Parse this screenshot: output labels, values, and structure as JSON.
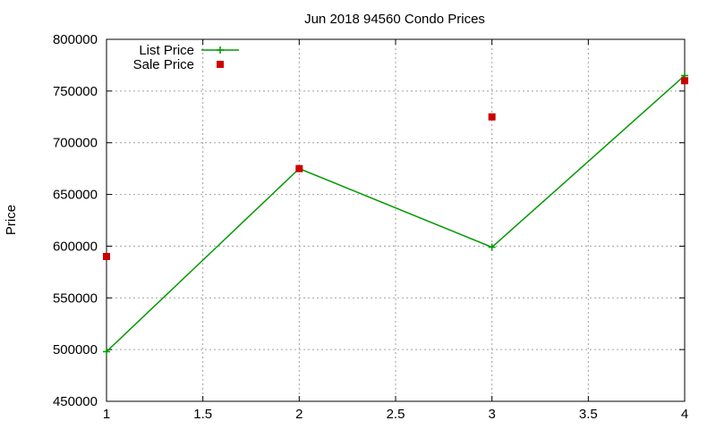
{
  "chart_data": {
    "type": "line",
    "title": "Jun 2018 94560 Condo Prices",
    "xlabel": "",
    "ylabel": "Price",
    "xlim": [
      1,
      4
    ],
    "ylim": [
      450000,
      800000
    ],
    "x_ticks": [
      1,
      1.5,
      2,
      2.5,
      3,
      3.5,
      4
    ],
    "x_tick_labels": [
      "1",
      "1.5",
      "2",
      "2.5",
      "3",
      "3.5",
      "4"
    ],
    "y_ticks": [
      450000,
      500000,
      550000,
      600000,
      650000,
      700000,
      750000,
      800000
    ],
    "y_tick_labels": [
      "450000",
      "500000",
      "550000",
      "600000",
      "650000",
      "700000",
      "750000",
      "800000"
    ],
    "grid": true,
    "legend_position": "top-left",
    "series": [
      {
        "name": "List Price",
        "style": "linespoints",
        "marker": "plus",
        "color": "#009900",
        "x": [
          1,
          2,
          3,
          4
        ],
        "y": [
          498000,
          675000,
          599000,
          765000
        ]
      },
      {
        "name": "Sale Price",
        "style": "points",
        "marker": "square",
        "color": "#cc0000",
        "x": [
          1,
          2,
          3,
          4
        ],
        "y": [
          590000,
          675000,
          725000,
          760000
        ]
      }
    ]
  }
}
